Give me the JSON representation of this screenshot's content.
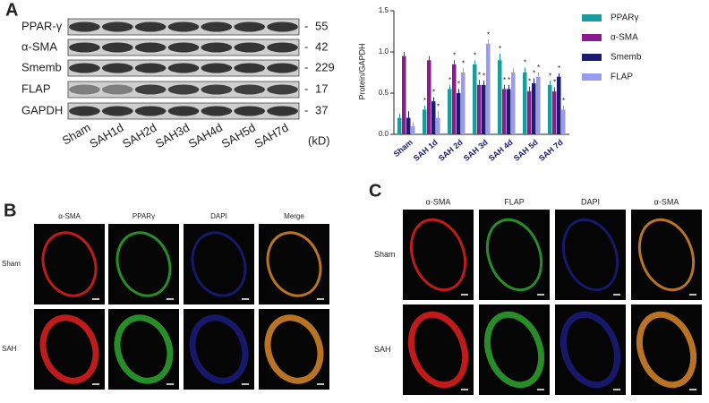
{
  "panel_a": {
    "label": "A",
    "proteins": [
      "PPAR-γ",
      "α-SMA",
      "Smemb",
      "FLAP",
      "GAPDH"
    ],
    "weights": [
      "55",
      "42",
      "229",
      "17",
      "37"
    ],
    "lanes": [
      "Sham",
      "SAH1d",
      "SAH2d",
      "SAH3d",
      "SAH4d",
      "SAH5d",
      "SAH7d"
    ],
    "unit": "(kD)"
  },
  "chart_data": {
    "type": "bar",
    "ylabel": "Protein/GAPDH",
    "categories": [
      "Sham",
      "SAH 1d",
      "SAH 2d",
      "SAH 3d",
      "SAH 4d",
      "SAH 5d",
      "SAH 7d"
    ],
    "series": [
      {
        "name": "PPARγ",
        "color": "#1b9c9c",
        "values": [
          0.2,
          0.3,
          0.55,
          0.85,
          0.9,
          0.75,
          0.6
        ],
        "errors": [
          0.05,
          0.05,
          0.05,
          0.05,
          0.08,
          0.06,
          0.05
        ],
        "annotations": [
          null,
          "*",
          "*",
          "*",
          "*",
          "*",
          "*"
        ]
      },
      {
        "name": "α-SMA",
        "color": "#8e1b8e",
        "values": [
          0.95,
          0.9,
          0.85,
          0.6,
          0.55,
          0.52,
          0.52
        ],
        "errors": [
          0.05,
          0.05,
          0.05,
          0.06,
          0.05,
          0.06,
          0.05
        ],
        "annotations": [
          null,
          null,
          "*",
          "*",
          "*",
          "*",
          "*"
        ]
      },
      {
        "name": "Smemb",
        "color": "#1b1b70",
        "values": [
          0.2,
          0.4,
          0.5,
          0.6,
          0.55,
          0.62,
          0.7
        ],
        "errors": [
          0.08,
          0.05,
          0.05,
          0.05,
          0.05,
          0.06,
          0.04
        ],
        "annotations": [
          null,
          "*",
          "*",
          "*",
          "*",
          "*",
          "*"
        ]
      },
      {
        "name": "FLAP",
        "color": "#9a9af0",
        "values": [
          0.1,
          0.2,
          0.75,
          1.1,
          0.75,
          0.7,
          0.3
        ],
        "errors": [
          0.05,
          0.08,
          0.05,
          0.05,
          0.05,
          0.05,
          0.05
        ],
        "annotations": [
          null,
          "*",
          "*",
          "*",
          null,
          "*",
          "*"
        ]
      }
    ],
    "ylim": [
      0,
      1.5
    ],
    "yticks": [
      {
        "value": 0,
        "label": "0.0"
      },
      {
        "value": 0.5,
        "label": "0.5"
      },
      {
        "value": 1,
        "label": "1.0"
      },
      {
        "value": 1.5,
        "label": "1.5"
      }
    ]
  },
  "panel_b": {
    "label": "B",
    "columns": [
      "α-SMA",
      "PPARγ",
      "DAPI",
      "Merge"
    ],
    "rows": [
      "Sham",
      "SAH"
    ]
  },
  "panel_c": {
    "label": "C",
    "columns": [
      "α-SMA",
      "FLAP",
      "DAPI",
      "α-SMA"
    ],
    "rows": [
      "Sham",
      "SAH"
    ]
  }
}
